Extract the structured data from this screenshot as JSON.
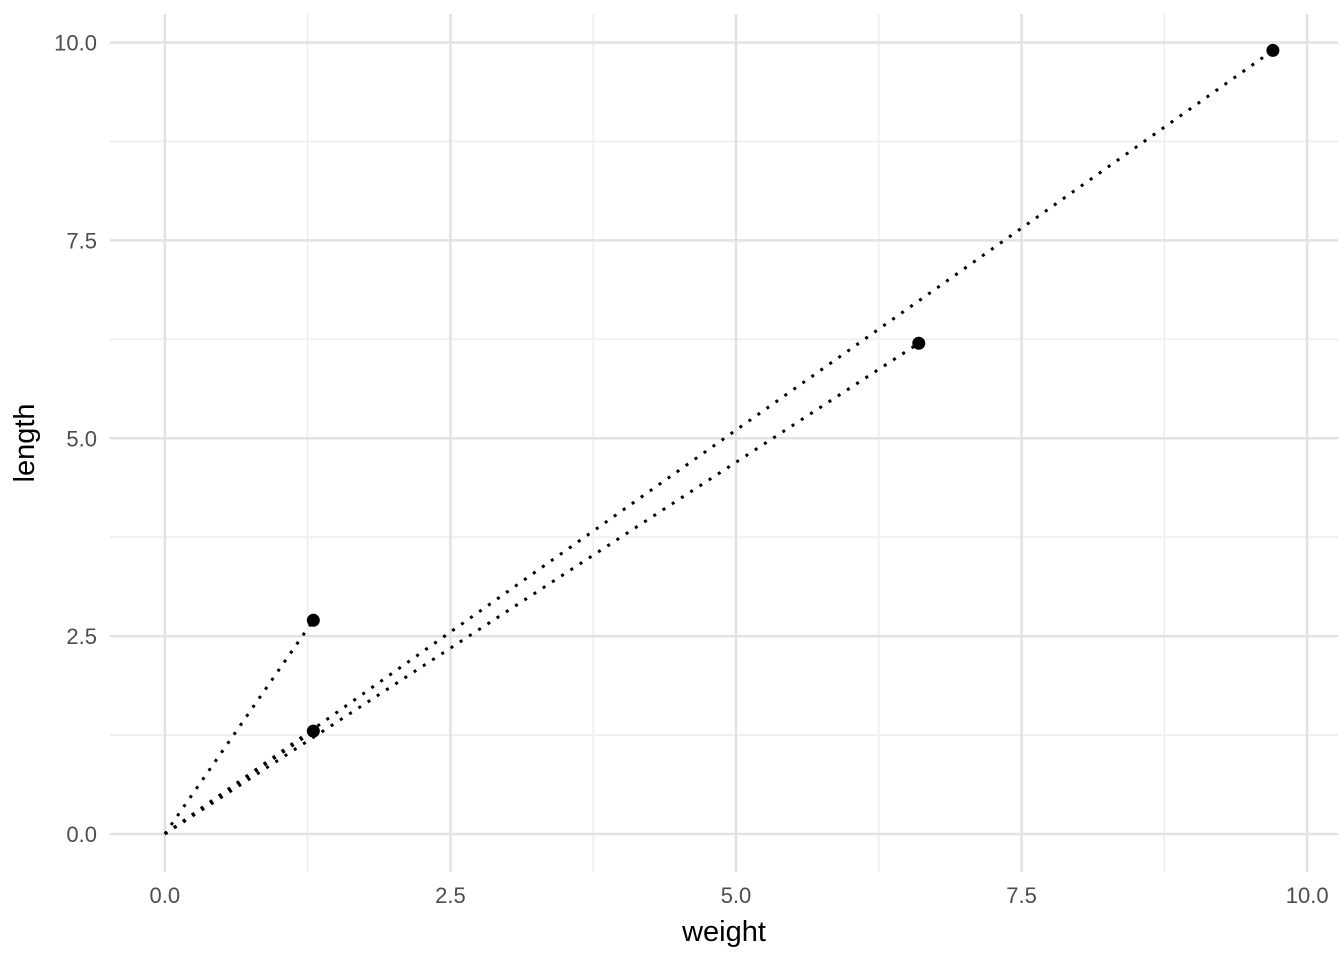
{
  "chart_data": {
    "type": "scatter",
    "title": "",
    "xlabel": "weight",
    "ylabel": "length",
    "points": [
      {
        "weight": 1.3,
        "length": 2.7
      },
      {
        "weight": 1.3,
        "length": 1.3
      },
      {
        "weight": 6.6,
        "length": 6.2
      },
      {
        "weight": 9.7,
        "length": 9.9
      }
    ],
    "segments": [
      {
        "x1": 0,
        "y1": 0,
        "x2": 1.3,
        "y2": 2.7
      },
      {
        "x1": 0,
        "y1": 0,
        "x2": 1.3,
        "y2": 1.3
      },
      {
        "x1": 0,
        "y1": 0,
        "x2": 6.6,
        "y2": 6.2
      },
      {
        "x1": 0,
        "y1": 0,
        "x2": 9.7,
        "y2": 9.9
      }
    ],
    "segment_style": "dotted",
    "x_ticks": {
      "major": [
        0,
        2.5,
        5,
        7.5,
        10
      ],
      "minor": [
        1.25,
        3.75,
        6.25,
        8.75
      ],
      "labels": [
        "0.0",
        "2.5",
        "5.0",
        "7.5",
        "10.0"
      ]
    },
    "y_ticks": {
      "major": [
        0,
        2.5,
        5,
        7.5,
        10
      ],
      "minor": [
        1.25,
        3.75,
        6.25,
        8.75
      ],
      "labels": [
        "0.0",
        "2.5",
        "5.0",
        "7.5",
        "10.0"
      ]
    },
    "xlim": [
      -0.48,
      10.27
    ],
    "ylim": [
      -0.48,
      10.36
    ],
    "grid": "major and minor, no panel border, no tick marks",
    "legend": false,
    "colors": {
      "point": "#000000",
      "segment": "#000000",
      "grid_major": "#e2e2e2",
      "grid_minor": "#efefef",
      "tick_label": "#4d4d4d",
      "axis_title": "#000000",
      "background": "#ffffff"
    }
  }
}
